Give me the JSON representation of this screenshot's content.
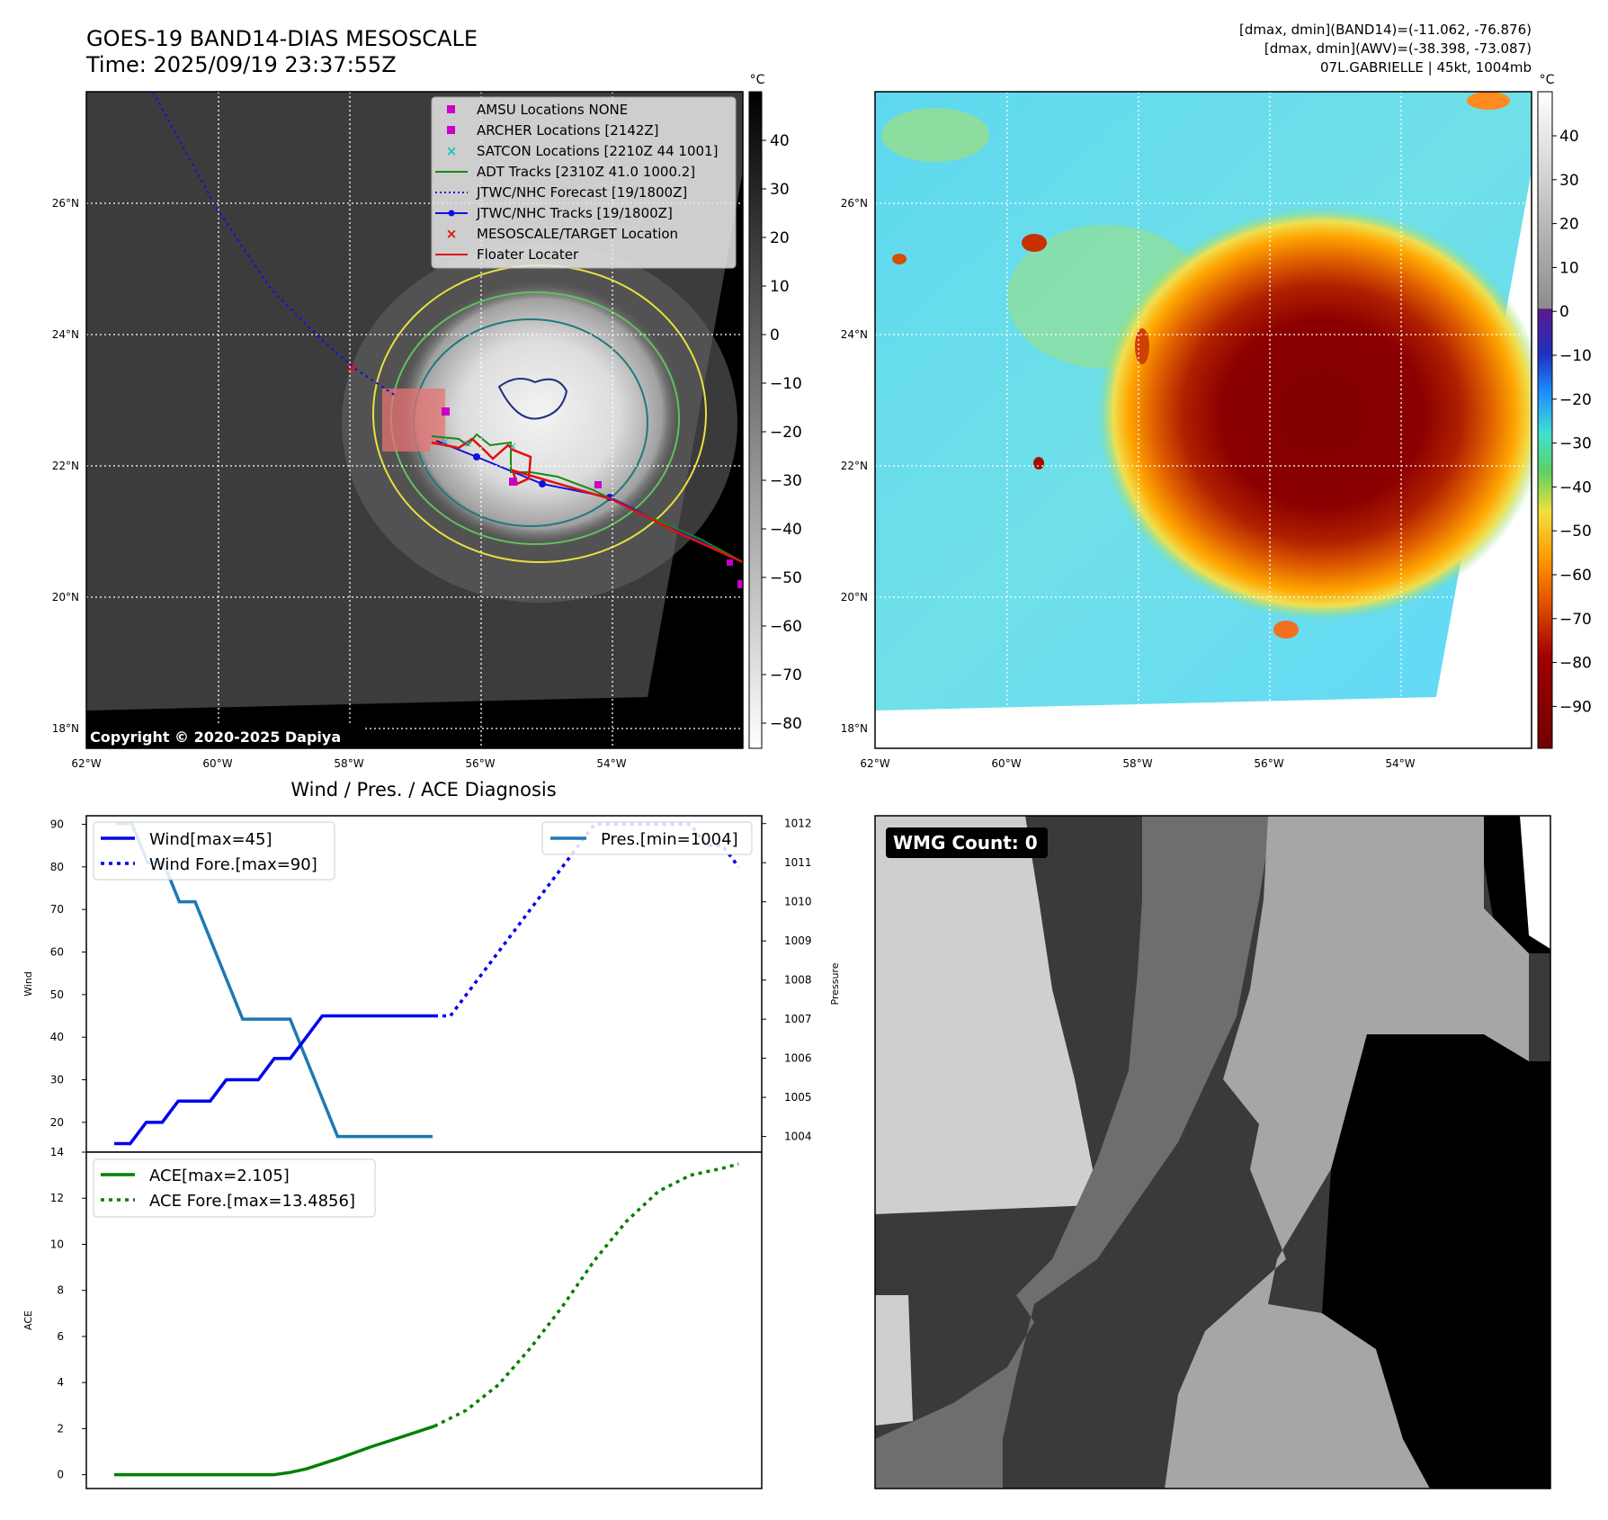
{
  "header": {
    "title": "GOES-19 BAND14-DIAS MESOSCALE",
    "time": "Time: 2025/09/19 23:37:55Z",
    "dmax_band14": "[dmax, dmin](BAND14)=(-11.062, -76.876)",
    "dmax_awv": "[dmax, dmin](AWV)=(-38.398, -73.087)",
    "storm": "07L.GABRIELLE | 45kt, 1004mb"
  },
  "map": {
    "lat_labels": [
      "26°N",
      "24°N",
      "22°N",
      "20°N",
      "18°N"
    ],
    "lon_labels": [
      "62°W",
      "60°W",
      "58°W",
      "56°W",
      "54°W"
    ],
    "copyright": "Copyright © 2020-2025 Dapiya",
    "legend": [
      {
        "label": "AMSU Locations NONE",
        "color": "#c800c8",
        "marker": "square"
      },
      {
        "label": "ARCHER Locations [2142Z]",
        "color": "#c800c8",
        "marker": "square"
      },
      {
        "label": "SATCON Locations [2210Z 44 1001]",
        "color": "#19c0c0",
        "marker": "x"
      },
      {
        "label": "ADT Tracks [2310Z 41.0 1000.2]",
        "color": "#158a15",
        "marker": "line"
      },
      {
        "label": "JTWC/NHC Forecast [19/1800Z]",
        "color": "#1010e0",
        "marker": "dotted"
      },
      {
        "label": "JTWC/NHC Tracks [19/1800Z]",
        "color": "#1010e0",
        "marker": "line-dot"
      },
      {
        "label": "MESOSCALE/TARGET Location",
        "color": "#e01010",
        "marker": "x"
      },
      {
        "label": "Floater Locater",
        "color": "#e01010",
        "marker": "line"
      }
    ]
  },
  "colorbar_left": {
    "unit": "°C",
    "ticks": [
      "40",
      "30",
      "20",
      "10",
      "0",
      "−10",
      "−20",
      "−30",
      "−40",
      "−50",
      "−60",
      "−70",
      "−80"
    ]
  },
  "colorbar_right": {
    "unit": "°C",
    "ticks": [
      "40",
      "30",
      "20",
      "10",
      "0",
      "−10",
      "−20",
      "−30",
      "−40",
      "−50",
      "−60",
      "−70",
      "−80",
      "−90"
    ]
  },
  "wmg": {
    "label": "WMG Count: 0"
  },
  "chart_data": [
    {
      "type": "line",
      "title": "Wind / Pres. / ACE Diagnosis",
      "ylabel": "Wind",
      "y2label": "Pressure",
      "ylim": [
        13,
        92
      ],
      "y2lim": [
        1003.6,
        1012.2
      ],
      "yticks": [
        20,
        30,
        40,
        50,
        60,
        70,
        80,
        90
      ],
      "y2ticks": [
        1004,
        1005,
        1006,
        1007,
        1008,
        1009,
        1010,
        1011,
        1012
      ],
      "series": [
        {
          "name": "Wind[max=45]",
          "color": "#0000ee",
          "style": "solid",
          "axis": "left",
          "x": [
            0,
            1,
            2,
            3,
            4,
            5,
            6,
            7,
            8,
            9,
            10,
            11,
            12,
            13,
            14,
            15,
            16,
            17,
            18,
            19,
            20
          ],
          "y": [
            15,
            15,
            20,
            20,
            25,
            25,
            25,
            30,
            30,
            30,
            35,
            35,
            40,
            45,
            45,
            45,
            45,
            45,
            45,
            45,
            45
          ]
        },
        {
          "name": "Wind Fore.[max=90]",
          "color": "#0000ee",
          "style": "dotted",
          "axis": "left",
          "x": [
            20,
            21,
            22,
            23,
            24,
            25,
            26,
            27,
            28,
            29,
            30,
            31,
            32,
            33,
            34,
            35,
            36,
            37,
            38,
            39
          ],
          "y": [
            45,
            45,
            50,
            55,
            60,
            65,
            70,
            75,
            80,
            85,
            90,
            90,
            90,
            90,
            90,
            90,
            90,
            85,
            85,
            80
          ]
        },
        {
          "name": "Pres.[min=1004]",
          "color": "#1f77b4",
          "style": "solid",
          "axis": "right",
          "x": [
            0,
            1,
            2,
            3,
            4,
            5,
            6,
            7,
            8,
            9,
            10,
            11,
            12,
            13,
            14,
            15,
            16,
            17,
            18,
            19,
            20
          ],
          "y": [
            1012,
            1012,
            1011,
            1011,
            1010,
            1010,
            1009,
            1008,
            1007,
            1007,
            1007,
            1007,
            1006,
            1005,
            1004,
            1004,
            1004,
            1004,
            1004,
            1004,
            1004
          ]
        }
      ]
    },
    {
      "type": "line",
      "ylabel": "ACE",
      "ylim": [
        -0.6,
        14
      ],
      "yticks": [
        0,
        2,
        4,
        6,
        8,
        10,
        12,
        14
      ],
      "series": [
        {
          "name": "ACE[max=2.105]",
          "color": "#008000",
          "style": "solid",
          "x": [
            0,
            2,
            4,
            6,
            8,
            10,
            11,
            12,
            14,
            16,
            18,
            20
          ],
          "y": [
            0,
            0,
            0,
            0,
            0,
            0,
            0.1,
            0.25,
            0.7,
            1.2,
            1.65,
            2.105
          ]
        },
        {
          "name": "ACE Fore.[max=13.4856]",
          "color": "#008000",
          "style": "dotted",
          "x": [
            20,
            22,
            24,
            26,
            28,
            30,
            32,
            34,
            36,
            38,
            39
          ],
          "y": [
            2.105,
            2.8,
            3.9,
            5.5,
            7.3,
            9.3,
            11.0,
            12.3,
            13.0,
            13.3,
            13.4856
          ]
        }
      ]
    }
  ]
}
